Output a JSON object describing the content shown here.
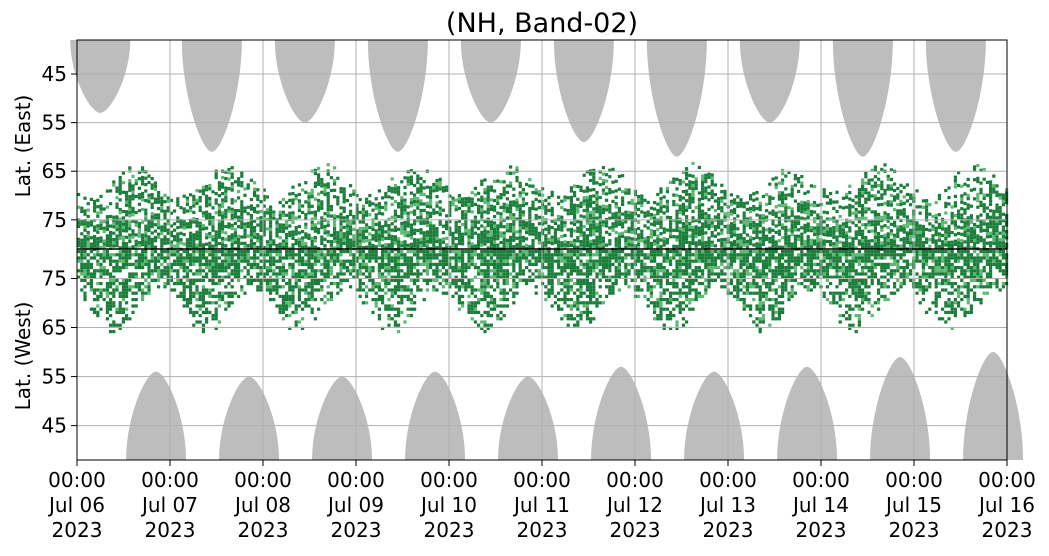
{
  "chart_data": {
    "type": "heatmap",
    "title": "(NH, Band-02)",
    "ylabel_upper": "Lat. (East)",
    "ylabel_lower": "Lat. (West)",
    "x": {
      "range": [
        "2023-07-06 00:00",
        "2023-07-16 00:00"
      ],
      "ticks": [
        {
          "time": "00:00",
          "date": "Jul 06",
          "year": "2023"
        },
        {
          "time": "00:00",
          "date": "Jul 07",
          "year": "2023"
        },
        {
          "time": "00:00",
          "date": "Jul 08",
          "year": "2023"
        },
        {
          "time": "00:00",
          "date": "Jul 09",
          "year": "2023"
        },
        {
          "time": "00:00",
          "date": "Jul 10",
          "year": "2023"
        },
        {
          "time": "00:00",
          "date": "Jul 11",
          "year": "2023"
        },
        {
          "time": "00:00",
          "date": "Jul 12",
          "year": "2023"
        },
        {
          "time": "00:00",
          "date": "Jul 13",
          "year": "2023"
        },
        {
          "time": "00:00",
          "date": "Jul 14",
          "year": "2023"
        },
        {
          "time": "00:00",
          "date": "Jul 15",
          "year": "2023"
        },
        {
          "time": "00:00",
          "date": "Jul 16",
          "year": "2023"
        }
      ]
    },
    "y_upper": {
      "label": "Lat. (East)",
      "ticks": [
        "45",
        "55",
        "65",
        "75"
      ],
      "range": [
        38,
        81
      ],
      "direction": "increasing downward"
    },
    "y_lower": {
      "label": "Lat. (West)",
      "ticks": [
        "75",
        "65",
        "55",
        "45"
      ],
      "range": [
        81,
        38
      ],
      "direction": "decreasing downward"
    },
    "grid": true,
    "colors": {
      "dark_green": "#1a7e3a",
      "light_green": "#5cb873",
      "gray_mask": "#bdbdbd",
      "grid": "#b0b0b0",
      "divider": "#000000"
    },
    "observation_bands": {
      "upper_center_lat": 72,
      "lower_center_lat": 74,
      "note": "Green patches concentrated between ~59 and ~81 deg latitude in both halves"
    },
    "gray_masks": {
      "upper_centers_days": [
        0.25,
        1.45,
        2.45,
        3.45,
        4.45,
        5.45,
        6.45,
        7.45,
        8.45,
        9.45
      ],
      "lower_centers_days": [
        0.85,
        1.85,
        2.85,
        3.85,
        4.85,
        5.85,
        6.85,
        7.85,
        8.85,
        9.85
      ],
      "upper_reach_lat": [
        53,
        61,
        55,
        61,
        55,
        59,
        62,
        55,
        62,
        61
      ],
      "lower_reach_lat": [
        56,
        55,
        55,
        56,
        55,
        57,
        56,
        57,
        59,
        60
      ]
    }
  }
}
